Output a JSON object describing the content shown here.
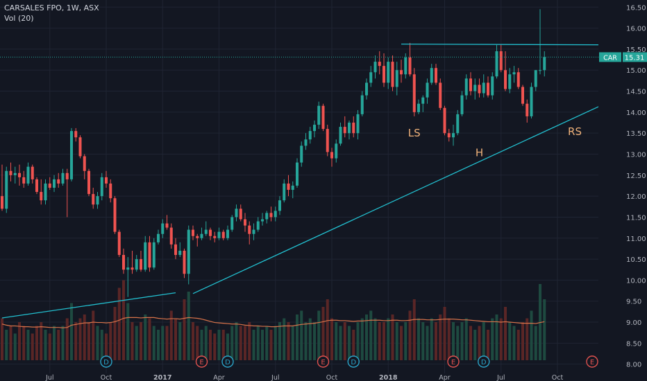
{
  "header": {
    "symbol_line": "CARSALES FPO, 1W, ASX",
    "volume_line": "Vol (20)"
  },
  "colors": {
    "background": "#131722",
    "up": "#26a69a",
    "down": "#ef5350",
    "up_volume": "#1e4a40",
    "down_volume": "#5a2626",
    "trendline": "#22c0d0",
    "vol_ma": "#d9734a",
    "text": "#b2b5be",
    "price_tag": "#26a69a"
  },
  "chart_data": {
    "type": "candlestick",
    "title": "CARSALES FPO, 1W, ASX",
    "x_labels": [
      "Jul",
      "Oct",
      "2017",
      "Apr",
      "Jul",
      "Oct",
      "2018",
      "Apr",
      "Jul",
      "Oct"
    ],
    "y_ticks": [
      "16.50",
      "16.00",
      "15.50",
      "15.00",
      "14.50",
      "14.00",
      "13.50",
      "13.00",
      "12.50",
      "12.00",
      "11.50",
      "11.00",
      "10.50",
      "10.00",
      "9.50",
      "9.00",
      "8.50",
      "8.00"
    ],
    "ylim": [
      7.78,
      16.62
    ],
    "grid": true,
    "last_price": {
      "symbol": "CAR",
      "value": "15.31"
    },
    "annotations": [
      {
        "text": "LS",
        "x": 95,
        "y": 13.42
      },
      {
        "text": "H",
        "x": 110,
        "y": 12.95
      },
      {
        "text": "RS",
        "x": 132,
        "y": 13.45
      }
    ],
    "trendlines": [
      {
        "from": [
          0,
          9.1
        ],
        "to": [
          40,
          9.7
        ]
      },
      {
        "from": [
          44,
          9.68
        ],
        "to": [
          140,
          14.25
        ]
      },
      {
        "from": [
          92,
          15.62
        ],
        "to": [
          146,
          15.6
        ]
      }
    ],
    "event_markers": [
      {
        "label": "D",
        "x": 24
      },
      {
        "label": "E",
        "x": 46
      },
      {
        "label": "D",
        "x": 52
      },
      {
        "label": "E",
        "x": 74
      },
      {
        "label": "D",
        "x": 81
      },
      {
        "label": "E",
        "x": 104
      },
      {
        "label": "D",
        "x": 111
      },
      {
        "label": "E",
        "x": 136
      }
    ],
    "candles": [
      [
        12.0,
        12.75,
        11.65,
        11.7
      ],
      [
        11.7,
        12.7,
        11.6,
        12.6
      ],
      [
        12.6,
        12.8,
        12.35,
        12.5
      ],
      [
        12.5,
        12.7,
        12.3,
        12.55
      ],
      [
        12.55,
        12.75,
        12.25,
        12.45
      ],
      [
        12.45,
        12.6,
        12.2,
        12.3
      ],
      [
        12.3,
        12.8,
        12.25,
        12.7
      ],
      [
        12.7,
        12.75,
        12.3,
        12.4
      ],
      [
        12.4,
        12.45,
        12.05,
        12.1
      ],
      [
        12.1,
        12.4,
        11.8,
        11.9
      ],
      [
        11.9,
        12.4,
        11.8,
        12.3
      ],
      [
        12.3,
        12.45,
        12.15,
        12.2
      ],
      [
        12.2,
        12.5,
        12.1,
        12.4
      ],
      [
        12.4,
        12.55,
        12.2,
        12.3
      ],
      [
        12.3,
        12.65,
        12.25,
        12.55
      ],
      [
        12.55,
        12.65,
        11.5,
        12.4
      ],
      [
        12.4,
        13.62,
        12.35,
        13.55
      ],
      [
        13.55,
        13.62,
        13.3,
        13.4
      ],
      [
        13.4,
        13.45,
        12.9,
        12.95
      ],
      [
        12.95,
        13.0,
        12.4,
        12.6
      ],
      [
        12.6,
        12.65,
        12.0,
        12.05
      ],
      [
        12.05,
        12.2,
        11.7,
        11.8
      ],
      [
        11.8,
        12.1,
        11.7,
        12.0
      ],
      [
        12.0,
        12.55,
        11.9,
        12.45
      ],
      [
        12.45,
        12.6,
        12.2,
        12.3
      ],
      [
        12.3,
        12.4,
        11.85,
        11.95
      ],
      [
        11.95,
        12.0,
        11.1,
        11.15
      ],
      [
        11.15,
        11.2,
        10.55,
        10.6
      ],
      [
        10.6,
        10.75,
        10.15,
        10.25
      ],
      [
        10.25,
        10.55,
        9.6,
        10.3
      ],
      [
        10.3,
        10.7,
        10.15,
        10.25
      ],
      [
        10.25,
        10.6,
        10.2,
        10.5
      ],
      [
        10.5,
        10.7,
        10.2,
        10.25
      ],
      [
        10.25,
        11.05,
        10.2,
        10.9
      ],
      [
        10.9,
        11.05,
        10.2,
        10.3
      ],
      [
        10.3,
        11.0,
        10.25,
        10.9
      ],
      [
        10.9,
        11.2,
        10.85,
        11.1
      ],
      [
        11.1,
        11.45,
        11.0,
        11.35
      ],
      [
        11.35,
        11.55,
        11.2,
        11.25
      ],
      [
        11.25,
        11.35,
        10.75,
        10.85
      ],
      [
        10.85,
        11.0,
        10.5,
        10.6
      ],
      [
        10.6,
        10.9,
        10.55,
        10.7
      ],
      [
        10.7,
        10.75,
        10.05,
        10.15
      ],
      [
        10.15,
        11.3,
        9.9,
        11.2
      ],
      [
        11.2,
        11.3,
        10.95,
        11.05
      ],
      [
        11.05,
        11.1,
        10.8,
        11.0
      ],
      [
        11.0,
        11.25,
        10.95,
        11.1
      ],
      [
        11.1,
        11.4,
        11.05,
        11.2
      ],
      [
        11.2,
        11.25,
        10.95,
        11.05
      ],
      [
        11.05,
        11.15,
        10.9,
        11.0
      ],
      [
        11.0,
        11.25,
        10.95,
        11.15
      ],
      [
        11.15,
        11.2,
        10.95,
        11.0
      ],
      [
        11.0,
        11.3,
        10.95,
        11.2
      ],
      [
        11.2,
        11.55,
        11.15,
        11.5
      ],
      [
        11.5,
        11.8,
        11.4,
        11.7
      ],
      [
        11.7,
        11.8,
        11.4,
        11.45
      ],
      [
        11.45,
        11.6,
        11.15,
        11.3
      ],
      [
        11.3,
        11.4,
        10.85,
        11.1
      ],
      [
        11.1,
        11.35,
        10.95,
        11.2
      ],
      [
        11.2,
        11.5,
        11.15,
        11.4
      ],
      [
        11.4,
        11.6,
        11.3,
        11.45
      ],
      [
        11.45,
        11.65,
        11.35,
        11.6
      ],
      [
        11.6,
        11.75,
        11.4,
        11.5
      ],
      [
        11.5,
        11.75,
        11.4,
        11.65
      ],
      [
        11.65,
        12.0,
        11.55,
        11.9
      ],
      [
        11.9,
        12.4,
        11.85,
        12.3
      ],
      [
        12.3,
        12.5,
        12.0,
        12.15
      ],
      [
        12.15,
        12.35,
        11.95,
        12.25
      ],
      [
        12.25,
        12.9,
        12.2,
        12.8
      ],
      [
        12.8,
        13.3,
        12.7,
        13.2
      ],
      [
        13.2,
        13.5,
        13.1,
        13.35
      ],
      [
        13.35,
        13.65,
        13.25,
        13.55
      ],
      [
        13.55,
        13.8,
        13.4,
        13.7
      ],
      [
        13.7,
        14.25,
        13.6,
        14.15
      ],
      [
        14.15,
        14.2,
        13.55,
        13.6
      ],
      [
        13.6,
        13.7,
        12.95,
        13.05
      ],
      [
        13.05,
        13.15,
        12.7,
        12.9
      ],
      [
        12.9,
        13.35,
        12.8,
        13.25
      ],
      [
        13.25,
        13.75,
        13.2,
        13.65
      ],
      [
        13.65,
        13.9,
        13.4,
        13.5
      ],
      [
        13.5,
        13.8,
        13.35,
        13.75
      ],
      [
        13.75,
        13.9,
        13.4,
        13.5
      ],
      [
        13.5,
        14.05,
        13.35,
        13.95
      ],
      [
        13.95,
        14.5,
        13.9,
        14.4
      ],
      [
        14.4,
        14.8,
        14.3,
        14.7
      ],
      [
        14.7,
        15.1,
        14.6,
        14.95
      ],
      [
        14.95,
        15.35,
        14.8,
        15.2
      ],
      [
        15.2,
        15.45,
        14.9,
        15.1
      ],
      [
        15.1,
        15.4,
        14.6,
        14.7
      ],
      [
        14.7,
        15.3,
        14.55,
        15.2
      ],
      [
        15.2,
        15.35,
        14.5,
        14.6
      ],
      [
        14.6,
        15.2,
        14.4,
        15.0
      ],
      [
        15.0,
        15.25,
        14.7,
        14.9
      ],
      [
        14.9,
        15.4,
        14.8,
        15.3
      ],
      [
        15.3,
        15.65,
        14.85,
        14.9
      ],
      [
        14.9,
        15.05,
        13.9,
        14.0
      ],
      [
        14.0,
        14.3,
        13.95,
        14.2
      ],
      [
        14.2,
        14.4,
        14.0,
        14.35
      ],
      [
        14.35,
        14.8,
        14.2,
        14.7
      ],
      [
        14.7,
        15.15,
        14.65,
        15.05
      ],
      [
        15.05,
        15.15,
        14.65,
        14.7
      ],
      [
        14.7,
        14.8,
        14.05,
        14.1
      ],
      [
        14.1,
        14.15,
        13.45,
        13.5
      ],
      [
        13.5,
        13.6,
        13.3,
        13.4
      ],
      [
        13.4,
        13.7,
        13.2,
        13.5
      ],
      [
        13.5,
        14.05,
        13.45,
        13.95
      ],
      [
        13.95,
        14.5,
        13.9,
        14.4
      ],
      [
        14.4,
        14.9,
        14.3,
        14.8
      ],
      [
        14.8,
        14.95,
        14.4,
        14.5
      ],
      [
        14.5,
        14.8,
        14.3,
        14.65
      ],
      [
        14.65,
        14.8,
        14.35,
        14.45
      ],
      [
        14.45,
        14.9,
        14.35,
        14.7
      ],
      [
        14.7,
        14.85,
        14.35,
        14.4
      ],
      [
        14.4,
        14.95,
        14.3,
        14.85
      ],
      [
        14.85,
        15.6,
        14.8,
        15.45
      ],
      [
        15.45,
        15.6,
        14.95,
        15.0
      ],
      [
        15.0,
        15.45,
        14.5,
        14.55
      ],
      [
        14.55,
        15.05,
        14.45,
        14.9
      ],
      [
        14.9,
        15.1,
        14.7,
        14.95
      ],
      [
        14.95,
        15.05,
        14.55,
        14.6
      ],
      [
        14.6,
        14.65,
        14.15,
        14.2
      ],
      [
        14.2,
        14.3,
        13.75,
        13.9
      ],
      [
        13.9,
        14.7,
        13.85,
        14.6
      ],
      [
        14.6,
        15.0,
        14.5,
        15.0
      ],
      [
        15.0,
        16.45,
        14.9,
        15.0
      ],
      [
        15.0,
        15.45,
        14.85,
        15.31
      ]
    ],
    "volume": [
      1.1,
      0.8,
      0.9,
      0.7,
      1.0,
      0.9,
      0.8,
      0.7,
      0.9,
      1.0,
      0.8,
      0.7,
      0.9,
      0.8,
      0.9,
      1.1,
      1.5,
      1.0,
      1.1,
      1.2,
      1.0,
      1.3,
      0.9,
      0.8,
      0.7,
      1.0,
      1.4,
      1.9,
      2.1,
      1.5,
      1.0,
      0.9,
      1.0,
      1.2,
      1.1,
      0.9,
      0.8,
      0.9,
      0.9,
      1.3,
      1.1,
      1.0,
      1.6,
      1.8,
      1.0,
      0.9,
      0.8,
      0.9,
      0.8,
      0.7,
      0.8,
      0.8,
      0.7,
      0.9,
      1.0,
      0.9,
      0.9,
      1.0,
      0.8,
      0.9,
      0.8,
      0.9,
      0.8,
      0.9,
      1.0,
      1.1,
      1.0,
      0.9,
      1.2,
      1.3,
      1.0,
      1.1,
      1.0,
      1.3,
      1.4,
      1.6,
      1.1,
      1.0,
      0.9,
      1.0,
      0.9,
      0.8,
      1.0,
      1.1,
      1.2,
      1.3,
      1.1,
      1.0,
      1.0,
      1.1,
      1.2,
      1.0,
      0.9,
      1.0,
      1.3,
      1.6,
      1.1,
      1.0,
      0.9,
      1.1,
      1.0,
      1.2,
      1.4,
      1.1,
      1.0,
      0.9,
      1.0,
      1.1,
      0.9,
      0.8,
      0.9,
      1.0,
      0.8,
      1.1,
      1.2,
      1.1,
      1.4,
      1.0,
      0.9,
      0.8,
      1.0,
      1.1,
      1.3,
      0.9,
      2.0,
      1.6
    ],
    "vol_ma": [
      0.95,
      0.92,
      0.9,
      0.9,
      0.89,
      0.88,
      0.88,
      0.87,
      0.87,
      0.88,
      0.87,
      0.86,
      0.86,
      0.86,
      0.85,
      0.86,
      0.92,
      0.94,
      0.96,
      0.98,
      0.98,
      1.0,
      0.99,
      0.99,
      0.98,
      0.99,
      1.01,
      1.05,
      1.1,
      1.12,
      1.12,
      1.12,
      1.11,
      1.12,
      1.12,
      1.12,
      1.1,
      1.09,
      1.08,
      1.09,
      1.09,
      1.08,
      1.1,
      1.12,
      1.11,
      1.1,
      1.08,
      1.05,
      1.02,
      0.99,
      0.98,
      0.97,
      0.96,
      0.95,
      0.95,
      0.94,
      0.92,
      0.91,
      0.9,
      0.9,
      0.89,
      0.89,
      0.88,
      0.88,
      0.89,
      0.9,
      0.9,
      0.9,
      0.92,
      0.94,
      0.95,
      0.96,
      0.97,
      0.99,
      1.01,
      1.04,
      1.05,
      1.05,
      1.04,
      1.04,
      1.03,
      1.02,
      1.03,
      1.03,
      1.04,
      1.05,
      1.05,
      1.05,
      1.04,
      1.04,
      1.05,
      1.05,
      1.04,
      1.04,
      1.05,
      1.07,
      1.07,
      1.07,
      1.06,
      1.06,
      1.06,
      1.07,
      1.08,
      1.08,
      1.08,
      1.07,
      1.06,
      1.06,
      1.05,
      1.04,
      1.03,
      1.02,
      1.01,
      1.01,
      1.01,
      1.0,
      1.01,
      1.0,
      0.99,
      0.98,
      0.97,
      0.97,
      0.97,
      0.96,
      0.99,
      1.01
    ]
  }
}
